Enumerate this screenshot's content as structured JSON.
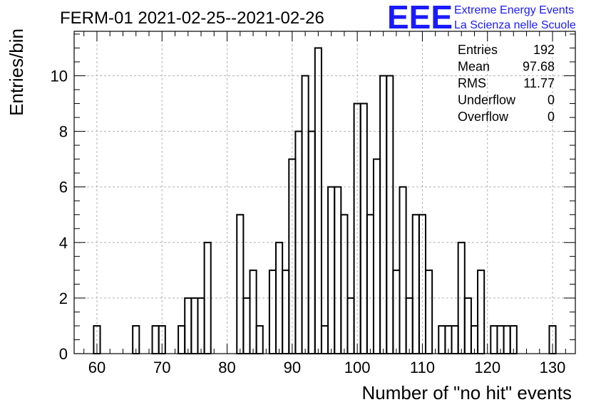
{
  "chart_data": {
    "type": "bar",
    "title": "FERM-01 2021-02-25--2021-02-26",
    "xlabel": "Number of \"no hit\" events",
    "ylabel": "Entries/bin",
    "xlim": [
      56.5,
      133.5
    ],
    "ylim": [
      0,
      11.6
    ],
    "bin_width": 1,
    "grid": true,
    "xticks": [
      60,
      70,
      80,
      90,
      100,
      110,
      120,
      130
    ],
    "yticks": [
      0,
      2,
      4,
      6,
      8,
      10
    ],
    "bins": [
      {
        "x": 60,
        "y": 1
      },
      {
        "x": 66,
        "y": 1
      },
      {
        "x": 69,
        "y": 1
      },
      {
        "x": 70,
        "y": 1
      },
      {
        "x": 73,
        "y": 1
      },
      {
        "x": 74,
        "y": 2
      },
      {
        "x": 75,
        "y": 2
      },
      {
        "x": 76,
        "y": 2
      },
      {
        "x": 77,
        "y": 4
      },
      {
        "x": 82,
        "y": 5
      },
      {
        "x": 83,
        "y": 2
      },
      {
        "x": 84,
        "y": 3
      },
      {
        "x": 85,
        "y": 1
      },
      {
        "x": 86,
        "y": 0
      },
      {
        "x": 87,
        "y": 3
      },
      {
        "x": 88,
        "y": 4
      },
      {
        "x": 89,
        "y": 3
      },
      {
        "x": 90,
        "y": 7
      },
      {
        "x": 91,
        "y": 8
      },
      {
        "x": 92,
        "y": 10
      },
      {
        "x": 93,
        "y": 8
      },
      {
        "x": 94,
        "y": 11
      },
      {
        "x": 95,
        "y": 1
      },
      {
        "x": 96,
        "y": 6
      },
      {
        "x": 97,
        "y": 6
      },
      {
        "x": 98,
        "y": 5
      },
      {
        "x": 99,
        "y": 2
      },
      {
        "x": 100,
        "y": 9
      },
      {
        "x": 101,
        "y": 9
      },
      {
        "x": 102,
        "y": 5
      },
      {
        "x": 103,
        "y": 7
      },
      {
        "x": 104,
        "y": 10
      },
      {
        "x": 105,
        "y": 10
      },
      {
        "x": 106,
        "y": 3
      },
      {
        "x": 107,
        "y": 6
      },
      {
        "x": 108,
        "y": 2
      },
      {
        "x": 109,
        "y": 5
      },
      {
        "x": 110,
        "y": 5
      },
      {
        "x": 111,
        "y": 3
      },
      {
        "x": 113,
        "y": 1
      },
      {
        "x": 114,
        "y": 1
      },
      {
        "x": 115,
        "y": 1
      },
      {
        "x": 116,
        "y": 4
      },
      {
        "x": 117,
        "y": 2
      },
      {
        "x": 118,
        "y": 1
      },
      {
        "x": 119,
        "y": 3
      },
      {
        "x": 121,
        "y": 1
      },
      {
        "x": 122,
        "y": 1
      },
      {
        "x": 123,
        "y": 1
      },
      {
        "x": 124,
        "y": 1
      },
      {
        "x": 130,
        "y": 1
      }
    ]
  },
  "stats": [
    {
      "label": "Entries",
      "value": "192"
    },
    {
      "label": "Mean",
      "value": "97.68"
    },
    {
      "label": "RMS",
      "value": "11.77"
    },
    {
      "label": "Underflow",
      "value": "0"
    },
    {
      "label": "Overflow",
      "value": "0"
    }
  ],
  "logo": {
    "mark": "EEE",
    "line1": "Extreme Energy Events",
    "line2": "La Scienza nelle Scuole",
    "color": "#1a1aff"
  },
  "colors": {
    "line": "#000000",
    "grid": "#b0b0b0"
  }
}
